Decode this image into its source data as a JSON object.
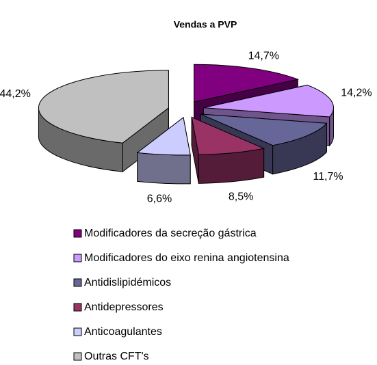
{
  "chart_data": {
    "type": "pie3d",
    "title": "Vendas a PVP",
    "categories": [
      "Modificadores da secreção gástrica",
      "Modificadores do eixo renina angiotensina",
      "Antidislipidémicos",
      "Antidepressores",
      "Anticoagulantes",
      "Outras CFT's"
    ],
    "values": [
      14.7,
      14.2,
      11.7,
      8.5,
      6.6,
      44.2
    ],
    "value_labels": [
      "14,7%",
      "14,2%",
      "11,7%",
      "8,5%",
      "6,6%",
      "44,2%"
    ],
    "colors": [
      "#800080",
      "#cc99ff",
      "#666699",
      "#993366",
      "#ccccff",
      "#c0c0c0"
    ]
  }
}
